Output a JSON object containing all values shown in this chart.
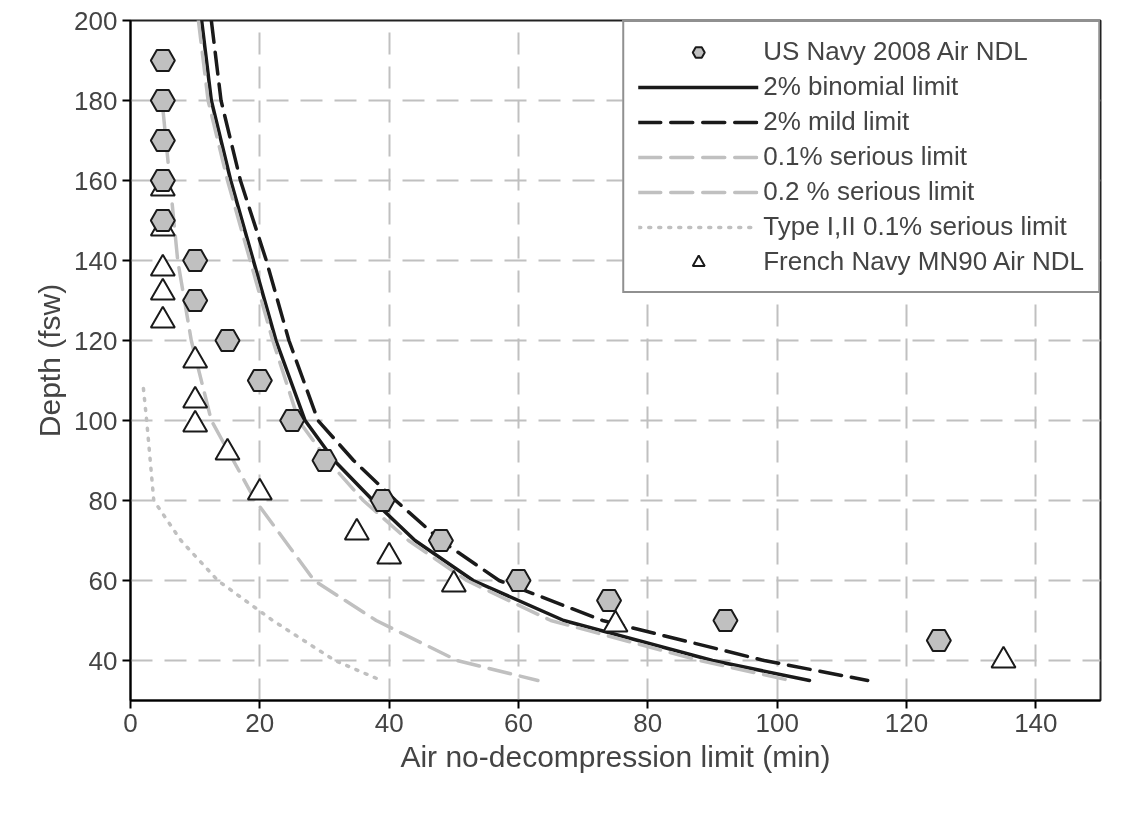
{
  "chart_data": {
    "type": "scatter",
    "xlabel": "Air no-decompression limit (min)",
    "ylabel": "Depth (fsw)",
    "xlim": [
      0,
      150
    ],
    "ylim": [
      30,
      200
    ],
    "xticks": [
      0,
      20,
      40,
      60,
      80,
      100,
      120,
      140
    ],
    "yticks": [
      40,
      60,
      80,
      100,
      120,
      140,
      160,
      180,
      200
    ],
    "grid": true,
    "legend": "top right",
    "series": [
      {
        "name": "US Navy 2008 Air NDL",
        "color": "#c0c0c0",
        "x": [
          5,
          5,
          5,
          5,
          5,
          10,
          10,
          15,
          20,
          25,
          30,
          39,
          48,
          60,
          74,
          92,
          125
        ],
        "values": [
          190,
          180,
          170,
          160,
          150,
          140,
          130,
          120,
          110,
          100,
          90,
          80,
          70,
          60,
          55,
          50,
          45
        ]
      },
      {
        "name": "2% binomial limit",
        "type": "line",
        "color": "#1a1a1a",
        "line_style": "solid",
        "x": [
          11,
          12.5,
          15.5,
          19,
          22.5,
          27,
          31.5,
          37.5,
          44,
          53,
          67,
          90,
          105
        ],
        "values": [
          200,
          180,
          160,
          140,
          120,
          100,
          90,
          80,
          70,
          60,
          50,
          40,
          35
        ]
      },
      {
        "name": "2% mild limit",
        "type": "line",
        "color": "#1a1a1a",
        "line_style": "dashed",
        "x": [
          12.5,
          14,
          17,
          21,
          24.5,
          29,
          34.5,
          41,
          48,
          57,
          73,
          98,
          114
        ],
        "values": [
          200,
          180,
          160,
          140,
          120,
          100,
          90,
          80,
          70,
          60,
          50,
          40,
          35
        ]
      },
      {
        "name": "0.1% serious limit",
        "type": "line",
        "color": "#c0c0c0",
        "line_style": "dashed",
        "x": [
          5,
          7.3,
          9.4,
          12.5,
          19.3,
          28.4,
          38,
          50.5,
          63
        ],
        "values": [
          178,
          140,
          120,
          100,
          80,
          60,
          50,
          40,
          35
        ]
      },
      {
        "name": "0.2 % serious limit",
        "type": "line",
        "color": "#c0c0c0",
        "line_style": "dashed",
        "x": [
          10.5,
          12,
          15,
          18.5,
          22,
          26,
          30.5,
          36,
          43,
          52,
          65,
          88,
          102
        ],
        "values": [
          200,
          180,
          160,
          140,
          120,
          100,
          90,
          80,
          70,
          60,
          50,
          40,
          35
        ]
      },
      {
        "name": "Type I,II 0.1% serious limit",
        "type": "line",
        "color": "#c0c0c0",
        "line_style": "dotted",
        "x": [
          2,
          2.5,
          3.6,
          7.8,
          13.5,
          22,
          31.6,
          38.8
        ],
        "values": [
          108,
          100,
          80,
          70,
          60,
          50,
          40,
          35
        ]
      },
      {
        "name": "French Navy MN90 Air NDL",
        "marker": "triangle",
        "color": "#ffffff",
        "x": [
          5,
          5,
          5,
          5,
          5,
          10,
          10,
          10,
          15,
          20,
          35,
          40,
          50,
          75,
          135
        ],
        "values": [
          158,
          148,
          138,
          132,
          125,
          115,
          105,
          99,
          92,
          82,
          72,
          66,
          59,
          49,
          40
        ]
      }
    ]
  }
}
